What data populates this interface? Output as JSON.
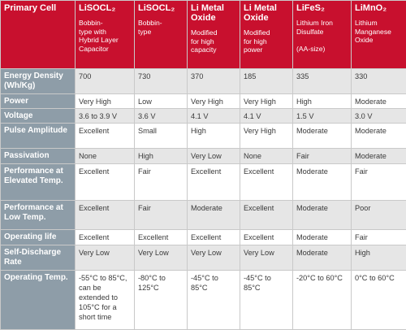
{
  "header": {
    "corner_label": "Primary Cell",
    "columns": [
      {
        "name": "LiSOCL₂",
        "desc": "Bobbin-\ntype with\nHybrid Layer\nCapacitor"
      },
      {
        "name": "LiSOCL₂",
        "desc": "Bobbin-\ntype"
      },
      {
        "name": "Li Metal Oxide",
        "desc": "Modified\nfor high\ncapacity"
      },
      {
        "name": "Li Metal Oxide",
        "desc": "Modified\nfor high\npower"
      },
      {
        "name": "LiFeS₂",
        "desc": "Lithium Iron\nDisulfate\n\n(AA-size)"
      },
      {
        "name": "LiMnO₂",
        "desc": "Lithium\nManganese\nOxide"
      }
    ]
  },
  "rows": [
    {
      "label": "Energy Density (Wh/Kg)",
      "values": [
        "700",
        "730",
        "370",
        "185",
        "335",
        "330"
      ]
    },
    {
      "label": "Power",
      "values": [
        "Very High",
        "Low",
        "Very High",
        "Very High",
        "High",
        "Moderate"
      ]
    },
    {
      "label": "Voltage",
      "values": [
        "3.6 to 3.9 V",
        "3.6 V",
        "4.1 V",
        "4.1 V",
        "1.5 V",
        "3.0 V"
      ]
    },
    {
      "label": "Pulse Amplitude",
      "values": [
        "Excellent",
        "Small",
        "High",
        "Very High",
        "Moderate",
        "Moderate"
      ]
    },
    {
      "label": "Passivation",
      "values": [
        "None",
        "High",
        "Very Low",
        "None",
        "Fair",
        "Moderate"
      ]
    },
    {
      "label": "Performance at Elevated Temp.",
      "values": [
        "Excellent",
        "Fair",
        "Excellent",
        "Excellent",
        "Moderate",
        "Fair"
      ]
    },
    {
      "label": "Performance at Low Temp.",
      "values": [
        "Excellent",
        "Fair",
        "Moderate",
        "Excellent",
        "Moderate",
        "Poor"
      ]
    },
    {
      "label": "Operating life",
      "values": [
        "Excellent",
        "Excellent",
        "Excellent",
        "Excellent",
        "Moderate",
        "Fair"
      ]
    },
    {
      "label": "Self-Discharge Rate",
      "values": [
        "Very Low",
        "Very Low",
        "Very Low",
        "Very Low",
        "Moderate",
        "High"
      ]
    },
    {
      "label": "Operating Temp.",
      "values": [
        "-55°C to 85°C, can be extended to 105°C for a short time",
        "-80°C to 125°C",
        "-45°C to 85°C",
        "-45°C to 85°C",
        "-20°C to 60°C",
        "0°C to 60°C"
      ]
    }
  ],
  "colors": {
    "header_red": "#c8102e",
    "label_gray": "#8e9da8",
    "alt_row": "#e6e6e6"
  }
}
